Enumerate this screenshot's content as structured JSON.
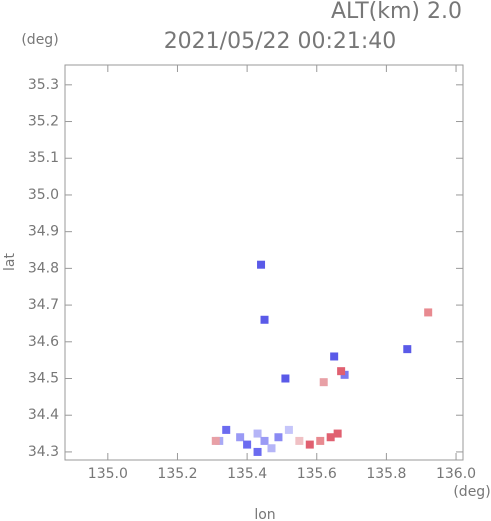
{
  "chart_data": {
    "type": "scatter",
    "title": "2021/05/22 00:21:40",
    "subtitle": "ALT(km) 2.0",
    "x_label": "lon",
    "y_label": "lat",
    "x_unit": "(deg)",
    "y_unit": "(deg)",
    "xlim": [
      134.877,
      136.02
    ],
    "ylim": [
      34.278,
      35.354
    ],
    "xticks": [
      {
        "value": 135,
        "label": "135.0"
      },
      135.2,
      135.4,
      135.6,
      135.8,
      {
        "value": 136,
        "label": "136.0"
      }
    ],
    "yticks": [
      34.3,
      34.4,
      34.5,
      34.6,
      34.7,
      34.8,
      34.9,
      {
        "value": 35,
        "label": "35.0"
      },
      35.1,
      35.2,
      35.3
    ],
    "points": [
      {
        "x": 135.44,
        "y": 34.81,
        "color": "#5a5ae8"
      },
      {
        "x": 135.45,
        "y": 34.66,
        "color": "#5a5ae8"
      },
      {
        "x": 135.86,
        "y": 34.58,
        "color": "#5a5ae8"
      },
      {
        "x": 135.51,
        "y": 34.5,
        "color": "#5a5ae8"
      },
      {
        "x": 135.65,
        "y": 34.56,
        "color": "#5a5ae8"
      },
      {
        "x": 135.68,
        "y": 34.51,
        "color": "#7b7bf0"
      },
      {
        "x": 135.32,
        "y": 34.33,
        "color": "#a9a9f5"
      },
      {
        "x": 135.34,
        "y": 34.36,
        "color": "#6b6bf0"
      },
      {
        "x": 135.38,
        "y": 34.34,
        "color": "#9a9af5"
      },
      {
        "x": 135.4,
        "y": 34.32,
        "color": "#6b6bf0"
      },
      {
        "x": 135.43,
        "y": 34.35,
        "color": "#b5b5f7"
      },
      {
        "x": 135.45,
        "y": 34.33,
        "color": "#9a9af5"
      },
      {
        "x": 135.47,
        "y": 34.31,
        "color": "#b5b5f7"
      },
      {
        "x": 135.49,
        "y": 34.34,
        "color": "#8a8af3"
      },
      {
        "x": 135.52,
        "y": 34.36,
        "color": "#c5c5fa"
      },
      {
        "x": 135.43,
        "y": 34.3,
        "color": "#6b6bf0"
      },
      {
        "x": 135.92,
        "y": 34.68,
        "color": "#e88a90"
      },
      {
        "x": 135.62,
        "y": 34.49,
        "color": "#e8a0a6"
      },
      {
        "x": 135.67,
        "y": 34.52,
        "color": "#e06070"
      },
      {
        "x": 135.55,
        "y": 34.33,
        "color": "#f0c0c4"
      },
      {
        "x": 135.58,
        "y": 34.32,
        "color": "#e06070"
      },
      {
        "x": 135.61,
        "y": 34.33,
        "color": "#e88a90"
      },
      {
        "x": 135.64,
        "y": 34.34,
        "color": "#e06070"
      },
      {
        "x": 135.66,
        "y": 34.35,
        "color": "#e06070"
      },
      {
        "x": 135.31,
        "y": 34.33,
        "color": "#e8a0a6"
      }
    ]
  }
}
